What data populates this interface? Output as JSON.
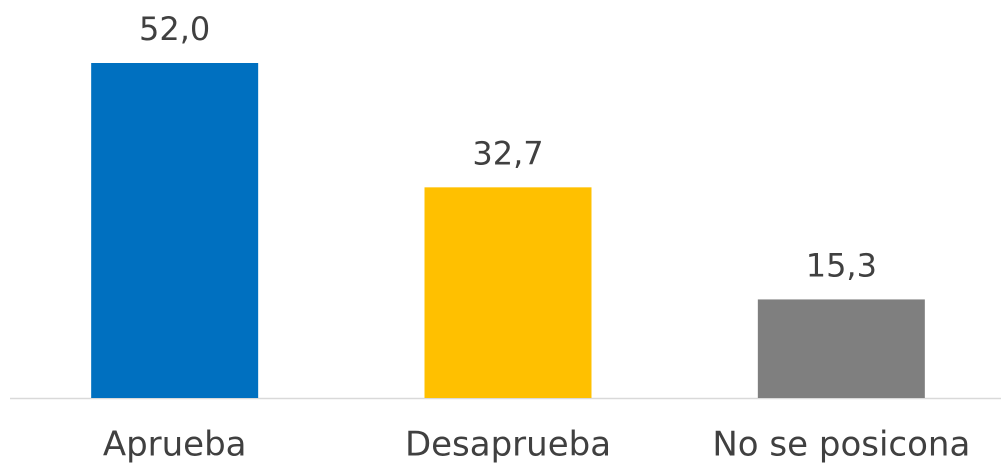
{
  "chart_data": {
    "type": "bar",
    "categories": [
      "Aprueba",
      "Desaprueba",
      "No se posicona"
    ],
    "values": [
      52.0,
      32.7,
      15.3
    ],
    "value_labels": [
      "52,0",
      "32,7",
      "15,3"
    ],
    "colors": [
      "#0070c0",
      "#ffc000",
      "#7f7f7f"
    ]
  }
}
